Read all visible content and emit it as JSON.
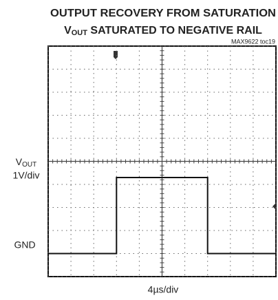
{
  "chart_data": {
    "type": "line",
    "title": "OUTPUT RECOVERY FROM SATURATION",
    "subtitle": [
      "V",
      "OUT",
      " SATURATED TO NEGATIVE RAIL"
    ],
    "note": "MAX9622 toc19",
    "y_label": [
      "V",
      "OUT"
    ],
    "y_scale": "1V/div",
    "ground_label": "GND",
    "x_scale": "4µs/div",
    "x": [
      0,
      12,
      12,
      28,
      28,
      40
    ],
    "series": [
      {
        "color": "#111111",
        "values": [
          0,
          0,
          3.3,
          3.3,
          0,
          0
        ]
      }
    ],
    "xlim": [
      0,
      40
    ],
    "ylim": [
      -1,
      9
    ],
    "xticks": [
      0,
      4,
      8,
      12,
      16,
      20,
      24,
      28,
      32,
      36,
      40
    ],
    "yticks": [
      -1,
      0,
      1,
      2,
      3,
      4,
      5,
      6,
      7,
      8,
      9
    ],
    "grid": true
  }
}
